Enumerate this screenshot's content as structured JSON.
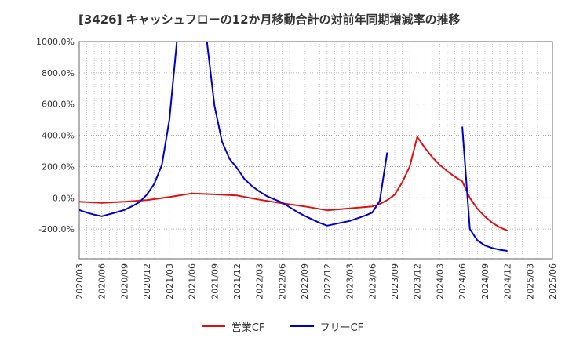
{
  "title": "[3426]  キャッシュフローの12か月移動合計の対前年同期増減率の推移",
  "chart_data": {
    "type": "line",
    "y_ticks": [
      "1000.0%",
      "800.0%",
      "600.0%",
      "400.0%",
      "200.0%",
      "0.0%",
      "-200.0%"
    ],
    "x_ticks": [
      "2020/03",
      "2020/06",
      "2020/09",
      "2020/12",
      "2021/03",
      "2021/06",
      "2021/09",
      "2021/12",
      "2022/03",
      "2022/06",
      "2022/09",
      "2022/12",
      "2023/03",
      "2023/06",
      "2023/09",
      "2023/12",
      "2024/03",
      "2024/06",
      "2024/09",
      "2024/12",
      "2025/03",
      "2025/06"
    ],
    "ylim": [
      -390,
      1000
    ],
    "xlim": [
      "2020/03",
      "2025/06"
    ],
    "grid": true,
    "legend_position": "bottom-center",
    "series": [
      {
        "name": "営業CF",
        "color": "#dd1111",
        "points": [
          [
            "2020/03",
            -25
          ],
          [
            "2020/06",
            -32
          ],
          [
            "2020/09",
            -25
          ],
          [
            "2020/12",
            -15
          ],
          [
            "2021/03",
            5
          ],
          [
            "2021/06",
            28
          ],
          [
            "2021/09",
            22
          ],
          [
            "2021/12",
            15
          ],
          [
            "2022/03",
            -12
          ],
          [
            "2022/06",
            -35
          ],
          [
            "2022/09",
            -55
          ],
          [
            "2022/12",
            -80
          ],
          [
            "2023/03",
            -68
          ],
          [
            "2023/06",
            -55
          ],
          [
            "2023/07",
            -40
          ],
          [
            "2023/08",
            -15
          ],
          [
            "2023/09",
            20
          ],
          [
            "2023/10",
            100
          ],
          [
            "2023/11",
            200
          ],
          [
            "2023/12",
            390
          ],
          [
            "2024/01",
            320
          ],
          [
            "2024/02",
            260
          ],
          [
            "2024/03",
            210
          ],
          [
            "2024/04",
            170
          ],
          [
            "2024/05",
            135
          ],
          [
            "2024/06",
            105
          ],
          [
            "2024/07",
            0
          ],
          [
            "2024/08",
            -70
          ],
          [
            "2024/09",
            -120
          ],
          [
            "2024/10",
            -160
          ],
          [
            "2024/11",
            -190
          ],
          [
            "2024/12",
            -210
          ]
        ]
      },
      {
        "name": "フリーCF",
        "color": "#0000cc",
        "segments": [
          [
            [
              "2020/03",
              -78
            ],
            [
              "2020/04",
              -95
            ],
            [
              "2020/05",
              -108
            ],
            [
              "2020/06",
              -118
            ],
            [
              "2020/07",
              -105
            ],
            [
              "2020/08",
              -92
            ],
            [
              "2020/09",
              -78
            ],
            [
              "2020/10",
              -55
            ],
            [
              "2020/11",
              -28
            ],
            [
              "2020/12",
              20
            ],
            [
              "2021/01",
              90
            ],
            [
              "2021/02",
              210
            ],
            [
              "2021/03",
              500
            ],
            [
              "2021/04",
              1000
            ]
          ],
          [
            [
              "2021/08",
              1000
            ],
            [
              "2021/09",
              590
            ],
            [
              "2021/10",
              360
            ],
            [
              "2021/11",
              250
            ],
            [
              "2021/12",
              190
            ],
            [
              "2022/01",
              120
            ],
            [
              "2022/02",
              75
            ],
            [
              "2022/03",
              40
            ],
            [
              "2022/04",
              10
            ],
            [
              "2022/05",
              -10
            ],
            [
              "2022/06",
              -30
            ],
            [
              "2022/07",
              -60
            ],
            [
              "2022/08",
              -90
            ],
            [
              "2022/09",
              -115
            ],
            [
              "2022/10",
              -138
            ],
            [
              "2022/11",
              -160
            ],
            [
              "2022/12",
              -178
            ],
            [
              "2023/01",
              -168
            ],
            [
              "2023/02",
              -158
            ],
            [
              "2023/03",
              -148
            ],
            [
              "2023/04",
              -132
            ],
            [
              "2023/05",
              -115
            ],
            [
              "2023/06",
              -95
            ],
            [
              "2023/07",
              -20
            ],
            [
              "2023/08",
              290
            ]
          ],
          [
            [
              "2024/06",
              455
            ],
            [
              "2024/07",
              -200
            ],
            [
              "2024/08",
              -272
            ],
            [
              "2024/09",
              -305
            ],
            [
              "2024/10",
              -322
            ],
            [
              "2024/11",
              -333
            ],
            [
              "2024/12",
              -340
            ]
          ]
        ]
      }
    ]
  }
}
